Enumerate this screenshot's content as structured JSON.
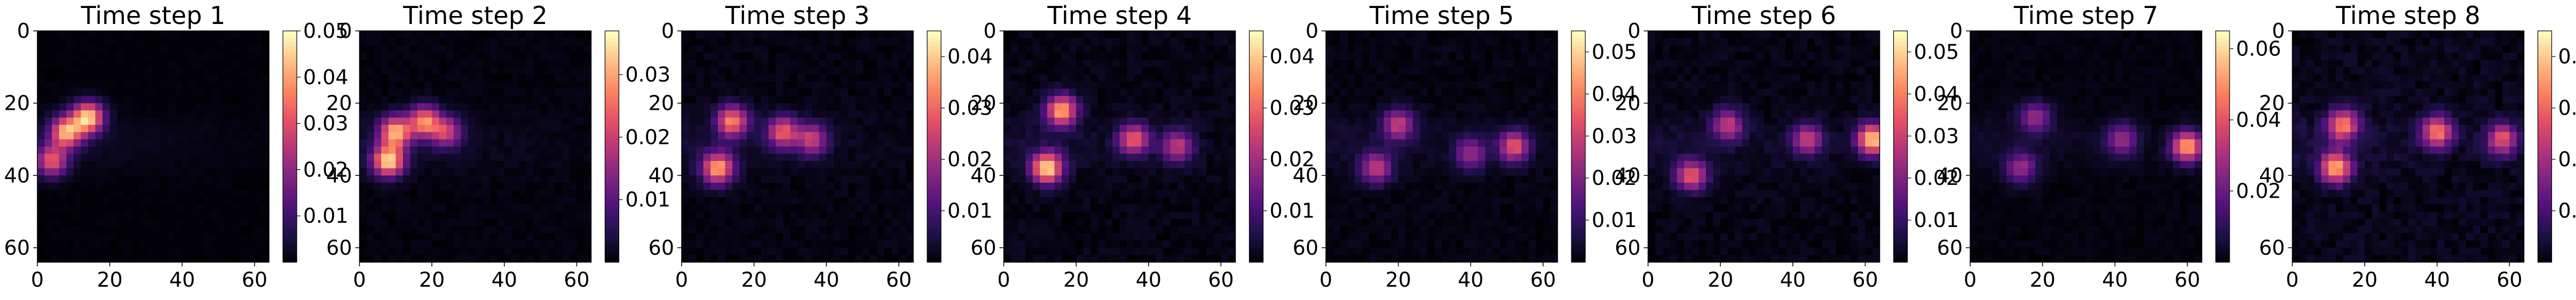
{
  "chart_data": [
    {
      "type": "heatmap",
      "title": "Time step 1",
      "x_ticks": [
        0,
        20,
        40,
        60
      ],
      "y_ticks": [
        0,
        20,
        40,
        60
      ],
      "x_range": [
        0,
        64
      ],
      "y_range": [
        64,
        0
      ],
      "colorscale": "magma",
      "colorbar": {
        "range": [
          0,
          0.05
        ],
        "ticks": [
          "0.01",
          "0.02",
          "0.03",
          "0.04",
          "0.05"
        ]
      },
      "hotspots": [
        {
          "x": 8,
          "y": 28,
          "intensity": 0.8
        },
        {
          "x": 14,
          "y": 24,
          "intensity": 0.9
        },
        {
          "x": 4,
          "y": 36,
          "intensity": 0.6
        }
      ],
      "noise": 0.02
    },
    {
      "type": "heatmap",
      "title": "Time step 2",
      "x_ticks": [
        0,
        20,
        40,
        60
      ],
      "y_ticks": [
        0,
        20,
        40,
        60
      ],
      "x_range": [
        0,
        64
      ],
      "y_range": [
        64,
        0
      ],
      "colorscale": "magma",
      "colorbar": {
        "range": [
          0,
          0.037
        ],
        "ticks": [
          "0.01",
          "0.02",
          "0.03"
        ]
      },
      "hotspots": [
        {
          "x": 10,
          "y": 28,
          "intensity": 0.8
        },
        {
          "x": 18,
          "y": 25,
          "intensity": 0.7
        },
        {
          "x": 8,
          "y": 36,
          "intensity": 0.9
        },
        {
          "x": 24,
          "y": 28,
          "intensity": 0.5
        }
      ],
      "noise": 0.04
    },
    {
      "type": "heatmap",
      "title": "Time step 3",
      "x_ticks": [
        0,
        20,
        40,
        60
      ],
      "y_ticks": [
        0,
        20,
        40,
        60
      ],
      "x_range": [
        0,
        64
      ],
      "y_range": [
        64,
        0
      ],
      "colorscale": "magma",
      "colorbar": {
        "range": [
          0,
          0.045
        ],
        "ticks": [
          "0.01",
          "0.02",
          "0.03",
          "0.04"
        ]
      },
      "hotspots": [
        {
          "x": 14,
          "y": 25,
          "intensity": 0.7
        },
        {
          "x": 28,
          "y": 28,
          "intensity": 0.6
        },
        {
          "x": 10,
          "y": 38,
          "intensity": 0.8
        },
        {
          "x": 36,
          "y": 30,
          "intensity": 0.5
        }
      ],
      "noise": 0.05
    },
    {
      "type": "heatmap",
      "title": "Time step 4",
      "x_ticks": [
        0,
        20,
        40,
        60
      ],
      "y_ticks": [
        0,
        20,
        40,
        60
      ],
      "x_range": [
        0,
        64
      ],
      "y_range": [
        64,
        0
      ],
      "colorscale": "magma",
      "colorbar": {
        "range": [
          0,
          0.045
        ],
        "ticks": [
          "0.01",
          "0.02",
          "0.03",
          "0.04"
        ]
      },
      "hotspots": [
        {
          "x": 16,
          "y": 22,
          "intensity": 0.8
        },
        {
          "x": 36,
          "y": 30,
          "intensity": 0.6
        },
        {
          "x": 12,
          "y": 38,
          "intensity": 0.9
        },
        {
          "x": 48,
          "y": 32,
          "intensity": 0.5
        }
      ],
      "noise": 0.06
    },
    {
      "type": "heatmap",
      "title": "Time step 5",
      "x_ticks": [
        0,
        20,
        40,
        60
      ],
      "y_ticks": [
        0,
        20,
        40,
        60
      ],
      "x_range": [
        0,
        64
      ],
      "y_range": [
        64,
        0
      ],
      "colorscale": "magma",
      "colorbar": {
        "range": [
          0,
          0.055
        ],
        "ticks": [
          "0.01",
          "0.02",
          "0.03",
          "0.04",
          "0.05"
        ]
      },
      "hotspots": [
        {
          "x": 20,
          "y": 26,
          "intensity": 0.5
        },
        {
          "x": 52,
          "y": 32,
          "intensity": 0.6
        },
        {
          "x": 14,
          "y": 38,
          "intensity": 0.5
        },
        {
          "x": 40,
          "y": 34,
          "intensity": 0.4
        }
      ],
      "noise": 0.05
    },
    {
      "type": "heatmap",
      "title": "Time step 6",
      "x_ticks": [
        0,
        20,
        40,
        60
      ],
      "y_ticks": [
        0,
        20,
        40,
        60
      ],
      "x_range": [
        0,
        64
      ],
      "y_range": [
        64,
        0
      ],
      "colorscale": "magma",
      "colorbar": {
        "range": [
          0,
          0.055
        ],
        "ticks": [
          "0.01",
          "0.02",
          "0.03",
          "0.04",
          "0.05"
        ]
      },
      "hotspots": [
        {
          "x": 22,
          "y": 26,
          "intensity": 0.5
        },
        {
          "x": 62,
          "y": 30,
          "intensity": 0.9
        },
        {
          "x": 12,
          "y": 40,
          "intensity": 0.6
        },
        {
          "x": 44,
          "y": 30,
          "intensity": 0.5
        }
      ],
      "noise": 0.06
    },
    {
      "type": "heatmap",
      "title": "Time step 7",
      "x_ticks": [
        0,
        20,
        40,
        60
      ],
      "y_ticks": [
        0,
        20,
        40,
        60
      ],
      "x_range": [
        0,
        64
      ],
      "y_range": [
        64,
        0
      ],
      "colorscale": "magma",
      "colorbar": {
        "range": [
          0,
          0.065
        ],
        "ticks": [
          "0.02",
          "0.04",
          "0.06"
        ]
      },
      "hotspots": [
        {
          "x": 18,
          "y": 24,
          "intensity": 0.4
        },
        {
          "x": 60,
          "y": 32,
          "intensity": 0.8
        },
        {
          "x": 14,
          "y": 38,
          "intensity": 0.4
        },
        {
          "x": 42,
          "y": 30,
          "intensity": 0.4
        }
      ],
      "noise": 0.04
    },
    {
      "type": "heatmap",
      "title": "Time step 8",
      "x_ticks": [
        0,
        20,
        40,
        60
      ],
      "y_ticks": [
        0,
        20,
        40,
        60
      ],
      "x_range": [
        0,
        64
      ],
      "y_range": [
        64,
        0
      ],
      "colorscale": "magma",
      "colorbar": {
        "range": [
          0,
          0.045
        ],
        "ticks": [
          "0.01",
          "0.02",
          "0.03",
          "0.04"
        ]
      },
      "hotspots": [
        {
          "x": 14,
          "y": 26,
          "intensity": 0.7
        },
        {
          "x": 40,
          "y": 28,
          "intensity": 0.7
        },
        {
          "x": 12,
          "y": 38,
          "intensity": 0.8
        },
        {
          "x": 58,
          "y": 30,
          "intensity": 0.6
        }
      ],
      "noise": 0.08
    }
  ]
}
